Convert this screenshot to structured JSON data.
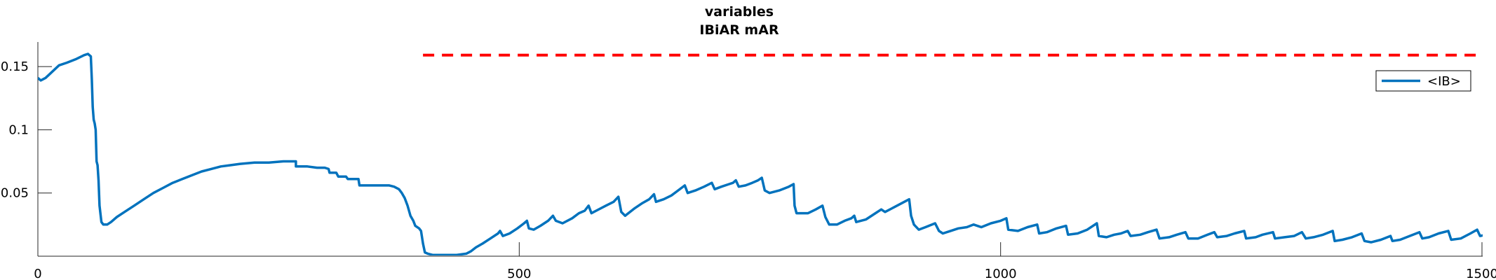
{
  "chart_data": {
    "type": "line",
    "title": "variables",
    "subtitle": "IBiAR mAR",
    "xlabel": "",
    "ylabel": "",
    "xlim": [
      0,
      1500
    ],
    "ylim": [
      0,
      0.16
    ],
    "x_ticks": [
      0,
      500,
      1000,
      1500
    ],
    "x_tick_labels": [
      "0",
      "500",
      "1000",
      "1500"
    ],
    "y_ticks": [
      0.05,
      0.1,
      0.15
    ],
    "y_tick_labels": [
      "0.05",
      "0.1",
      "0.15"
    ],
    "grid": false,
    "legend": {
      "position": "top-right",
      "entries": [
        "<IB>"
      ]
    },
    "series": [
      {
        "name": "<IB>",
        "color": "#0072BD",
        "style": "solid",
        "points": [
          [
            0,
            0.141
          ],
          [
            3,
            0.139
          ],
          [
            8,
            0.141
          ],
          [
            15,
            0.146
          ],
          [
            22,
            0.151
          ],
          [
            30,
            0.153
          ],
          [
            40,
            0.156
          ],
          [
            48,
            0.159
          ],
          [
            52,
            0.16
          ],
          [
            55,
            0.158
          ],
          [
            56,
            0.14
          ],
          [
            57,
            0.118
          ],
          [
            58,
            0.108
          ],
          [
            59,
            0.105
          ],
          [
            60,
            0.1
          ],
          [
            61,
            0.075
          ],
          [
            62,
            0.072
          ],
          [
            63,
            0.06
          ],
          [
            64,
            0.04
          ],
          [
            66,
            0.027
          ],
          [
            68,
            0.025
          ],
          [
            72,
            0.025
          ],
          [
            76,
            0.027
          ],
          [
            82,
            0.031
          ],
          [
            90,
            0.035
          ],
          [
            100,
            0.04
          ],
          [
            110,
            0.045
          ],
          [
            120,
            0.05
          ],
          [
            130,
            0.054
          ],
          [
            140,
            0.058
          ],
          [
            150,
            0.061
          ],
          [
            160,
            0.064
          ],
          [
            170,
            0.067
          ],
          [
            180,
            0.069
          ],
          [
            190,
            0.071
          ],
          [
            200,
            0.072
          ],
          [
            210,
            0.073
          ],
          [
            225,
            0.074
          ],
          [
            240,
            0.074
          ],
          [
            255,
            0.075
          ],
          [
            268,
            0.075
          ],
          [
            268,
            0.071
          ],
          [
            280,
            0.071
          ],
          [
            290,
            0.07
          ],
          [
            298,
            0.07
          ],
          [
            302,
            0.069
          ],
          [
            303,
            0.066
          ],
          [
            310,
            0.066
          ],
          [
            312,
            0.063
          ],
          [
            320,
            0.063
          ],
          [
            322,
            0.061
          ],
          [
            333,
            0.061
          ],
          [
            334,
            0.056
          ],
          [
            345,
            0.056
          ],
          [
            365,
            0.056
          ],
          [
            370,
            0.055
          ],
          [
            375,
            0.053
          ],
          [
            378,
            0.05
          ],
          [
            381,
            0.046
          ],
          [
            384,
            0.04
          ],
          [
            387,
            0.032
          ],
          [
            390,
            0.028
          ],
          [
            392,
            0.024
          ],
          [
            396,
            0.022
          ],
          [
            398,
            0.02
          ],
          [
            400,
            0.01
          ],
          [
            402,
            0.003
          ],
          [
            405,
            0.002
          ],
          [
            410,
            0.001
          ],
          [
            420,
            0.001
          ],
          [
            435,
            0.001
          ],
          [
            445,
            0.002
          ],
          [
            450,
            0.004
          ],
          [
            455,
            0.007
          ],
          [
            462,
            0.01
          ],
          [
            470,
            0.014
          ],
          [
            478,
            0.018
          ],
          [
            480,
            0.02
          ],
          [
            483,
            0.016
          ],
          [
            490,
            0.018
          ],
          [
            498,
            0.022
          ],
          [
            505,
            0.026
          ],
          [
            508,
            0.028
          ],
          [
            510,
            0.022
          ],
          [
            515,
            0.021
          ],
          [
            522,
            0.024
          ],
          [
            530,
            0.028
          ],
          [
            535,
            0.032
          ],
          [
            538,
            0.028
          ],
          [
            545,
            0.026
          ],
          [
            555,
            0.03
          ],
          [
            562,
            0.034
          ],
          [
            568,
            0.036
          ],
          [
            572,
            0.04
          ],
          [
            575,
            0.034
          ],
          [
            580,
            0.036
          ],
          [
            590,
            0.04
          ],
          [
            598,
            0.043
          ],
          [
            603,
            0.047
          ],
          [
            606,
            0.035
          ],
          [
            610,
            0.032
          ],
          [
            620,
            0.038
          ],
          [
            628,
            0.042
          ],
          [
            635,
            0.045
          ],
          [
            640,
            0.049
          ],
          [
            642,
            0.043
          ],
          [
            650,
            0.045
          ],
          [
            658,
            0.048
          ],
          [
            665,
            0.052
          ],
          [
            672,
            0.056
          ],
          [
            675,
            0.05
          ],
          [
            683,
            0.052
          ],
          [
            692,
            0.055
          ],
          [
            700,
            0.058
          ],
          [
            703,
            0.053
          ],
          [
            710,
            0.055
          ],
          [
            718,
            0.057
          ],
          [
            722,
            0.058
          ],
          [
            725,
            0.06
          ],
          [
            728,
            0.055
          ],
          [
            735,
            0.056
          ],
          [
            742,
            0.058
          ],
          [
            748,
            0.06
          ],
          [
            752,
            0.062
          ],
          [
            755,
            0.052
          ],
          [
            760,
            0.05
          ],
          [
            770,
            0.052
          ],
          [
            780,
            0.055
          ],
          [
            785,
            0.057
          ],
          [
            786,
            0.04
          ],
          [
            788,
            0.034
          ],
          [
            800,
            0.034
          ],
          [
            808,
            0.037
          ],
          [
            815,
            0.04
          ],
          [
            818,
            0.031
          ],
          [
            822,
            0.025
          ],
          [
            830,
            0.025
          ],
          [
            838,
            0.028
          ],
          [
            845,
            0.03
          ],
          [
            848,
            0.032
          ],
          [
            850,
            0.027
          ],
          [
            860,
            0.029
          ],
          [
            870,
            0.034
          ],
          [
            876,
            0.037
          ],
          [
            880,
            0.035
          ],
          [
            890,
            0.039
          ],
          [
            900,
            0.043
          ],
          [
            905,
            0.045
          ],
          [
            907,
            0.032
          ],
          [
            910,
            0.025
          ],
          [
            915,
            0.021
          ],
          [
            922,
            0.023
          ],
          [
            932,
            0.026
          ],
          [
            936,
            0.02
          ],
          [
            940,
            0.018
          ],
          [
            948,
            0.02
          ],
          [
            956,
            0.022
          ],
          [
            965,
            0.023
          ],
          [
            972,
            0.025
          ],
          [
            980,
            0.023
          ],
          [
            990,
            0.026
          ],
          [
            1000,
            0.028
          ],
          [
            1006,
            0.03
          ],
          [
            1008,
            0.021
          ],
          [
            1018,
            0.02
          ],
          [
            1028,
            0.023
          ],
          [
            1038,
            0.025
          ],
          [
            1040,
            0.018
          ],
          [
            1048,
            0.019
          ],
          [
            1058,
            0.022
          ],
          [
            1068,
            0.024
          ],
          [
            1070,
            0.017
          ],
          [
            1080,
            0.018
          ],
          [
            1090,
            0.021
          ],
          [
            1100,
            0.026
          ],
          [
            1102,
            0.016
          ],
          [
            1110,
            0.015
          ],
          [
            1118,
            0.017
          ],
          [
            1125,
            0.018
          ],
          [
            1132,
            0.02
          ],
          [
            1135,
            0.016
          ],
          [
            1145,
            0.017
          ],
          [
            1153,
            0.019
          ],
          [
            1162,
            0.021
          ],
          [
            1165,
            0.014
          ],
          [
            1175,
            0.015
          ],
          [
            1183,
            0.017
          ],
          [
            1192,
            0.019
          ],
          [
            1195,
            0.014
          ],
          [
            1205,
            0.014
          ],
          [
            1215,
            0.017
          ],
          [
            1222,
            0.019
          ],
          [
            1225,
            0.015
          ],
          [
            1235,
            0.016
          ],
          [
            1243,
            0.018
          ],
          [
            1253,
            0.02
          ],
          [
            1255,
            0.014
          ],
          [
            1265,
            0.015
          ],
          [
            1272,
            0.017
          ],
          [
            1283,
            0.019
          ],
          [
            1285,
            0.014
          ],
          [
            1295,
            0.015
          ],
          [
            1305,
            0.016
          ],
          [
            1313,
            0.019
          ],
          [
            1317,
            0.014
          ],
          [
            1325,
            0.015
          ],
          [
            1335,
            0.017
          ],
          [
            1345,
            0.02
          ],
          [
            1347,
            0.012
          ],
          [
            1355,
            0.013
          ],
          [
            1365,
            0.015
          ],
          [
            1375,
            0.018
          ],
          [
            1378,
            0.012
          ],
          [
            1385,
            0.011
          ],
          [
            1395,
            0.013
          ],
          [
            1405,
            0.016
          ],
          [
            1407,
            0.012
          ],
          [
            1415,
            0.013
          ],
          [
            1425,
            0.016
          ],
          [
            1435,
            0.019
          ],
          [
            1438,
            0.014
          ],
          [
            1445,
            0.015
          ],
          [
            1455,
            0.018
          ],
          [
            1465,
            0.02
          ],
          [
            1468,
            0.013
          ],
          [
            1478,
            0.014
          ],
          [
            1488,
            0.018
          ],
          [
            1495,
            0.021
          ],
          [
            1498,
            0.016
          ],
          [
            1505,
            0.017
          ],
          [
            1515,
            0.02
          ],
          [
            1525,
            0.022
          ],
          [
            1528,
            0.015
          ],
          [
            1535,
            0.015
          ],
          [
            1545,
            0.018
          ],
          [
            1555,
            0.021
          ],
          [
            1558,
            0.014
          ],
          [
            1565,
            0.012
          ],
          [
            1575,
            0.013
          ],
          [
            1590,
            0.017
          ],
          [
            1600,
            0.019
          ]
        ]
      },
      {
        "name": "",
        "color": "#FF0000",
        "style": "dashed",
        "points": [
          [
            400,
            0.159
          ],
          [
            1500,
            0.159
          ]
        ]
      }
    ]
  }
}
